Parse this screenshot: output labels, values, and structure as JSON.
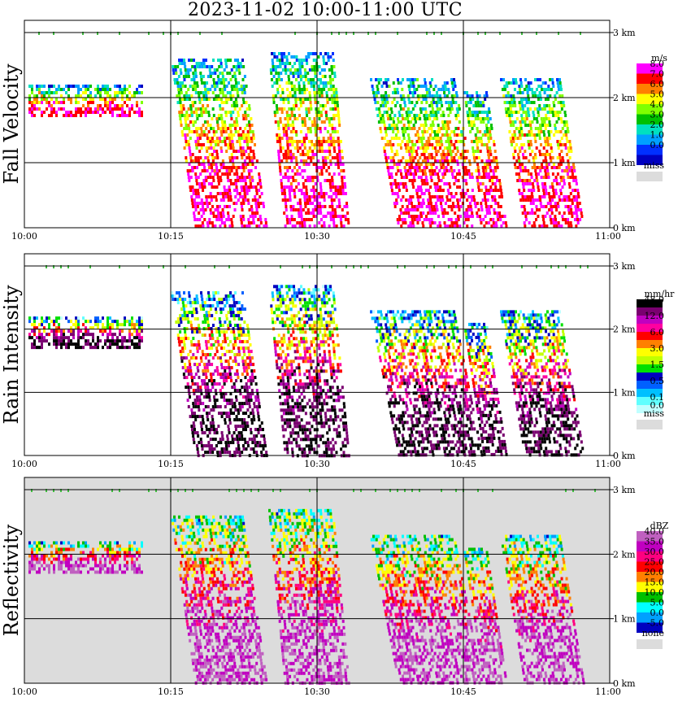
{
  "title": "2023-11-02   10:00-11:00 UTC",
  "chart_data": [
    {
      "type": "heatmap",
      "ylabel": "Fall Velocity",
      "colorbar_title": "m/s",
      "x_ticks": [
        "10:00",
        "10:15",
        "10:30",
        "10:45",
        "11:00"
      ],
      "y_ticks": [
        "0 km",
        "1 km",
        "2 km",
        "3 km"
      ],
      "ylim": [
        0,
        3.2
      ],
      "grid": true,
      "background": "#ffffff",
      "colorbar": [
        {
          "label": "8.0",
          "color": "#ff00ff"
        },
        {
          "label": "7.0",
          "color": "#ff0000"
        },
        {
          "label": "6.0",
          "color": "#ff8000"
        },
        {
          "label": "5.0",
          "color": "#ffff00"
        },
        {
          "label": "4.0",
          "color": "#80ff00"
        },
        {
          "label": "3.0",
          "color": "#00c000"
        },
        {
          "label": "2.0",
          "color": "#00e0c0"
        },
        {
          "label": "1.0",
          "color": "#00a0ff"
        },
        {
          "label": "0.0",
          "color": "#0030ff"
        },
        {
          "label": "",
          "color": "#0000c0"
        }
      ],
      "missing_label": "miss"
    },
    {
      "type": "heatmap",
      "ylabel": "Rain Intensity",
      "colorbar_title": "mm/hr",
      "x_ticks": [
        "10:00",
        "10:15",
        "10:30",
        "10:45",
        "11:00"
      ],
      "y_ticks": [
        "0 km",
        "1 km",
        "2 km",
        "3 km"
      ],
      "ylim": [
        0,
        3.2
      ],
      "grid": true,
      "background": "#ffffff",
      "colorbar": [
        {
          "label": "48.0",
          "color": "#000000"
        },
        {
          "label": "",
          "color": "#7a0070"
        },
        {
          "label": "12.0",
          "color": "#c000c0"
        },
        {
          "label": "",
          "color": "#ff00a0"
        },
        {
          "label": "6.0",
          "color": "#ff0000"
        },
        {
          "label": "",
          "color": "#ff8000"
        },
        {
          "label": "3.0",
          "color": "#ffff00"
        },
        {
          "label": "",
          "color": "#c0ff00"
        },
        {
          "label": "1.5",
          "color": "#00e000"
        },
        {
          "label": "",
          "color": "#0000c0"
        },
        {
          "label": "0.5",
          "color": "#0060ff"
        },
        {
          "label": "",
          "color": "#00c0ff"
        },
        {
          "label": "0.1",
          "color": "#60ffff"
        },
        {
          "label": "0.0",
          "color": "#c0ffff"
        }
      ],
      "missing_label": "miss"
    },
    {
      "type": "heatmap",
      "ylabel": "Reflectivity",
      "colorbar_title": "dBZ",
      "x_ticks": [
        "10:00",
        "10:15",
        "10:30",
        "10:45",
        "11:00"
      ],
      "y_ticks": [
        "0 km",
        "1 km",
        "2 km",
        "3 km"
      ],
      "ylim": [
        0,
        3.2
      ],
      "grid": true,
      "background": "#dcdcdc",
      "colorbar": [
        {
          "label": "40.0",
          "color": "#c060c0"
        },
        {
          "label": "35.0",
          "color": "#c000c0"
        },
        {
          "label": "30.0",
          "color": "#ff0080"
        },
        {
          "label": "25.0",
          "color": "#ff0000"
        },
        {
          "label": "20.0",
          "color": "#ff8000"
        },
        {
          "label": "15.0",
          "color": "#ffff00"
        },
        {
          "label": "10.0",
          "color": "#00c000"
        },
        {
          "label": "5.0",
          "color": "#00ffff"
        },
        {
          "label": "0.0",
          "color": "#00a0ff"
        },
        {
          "label": "-5.0",
          "color": "#0000c0"
        }
      ],
      "missing_label": "none"
    }
  ]
}
